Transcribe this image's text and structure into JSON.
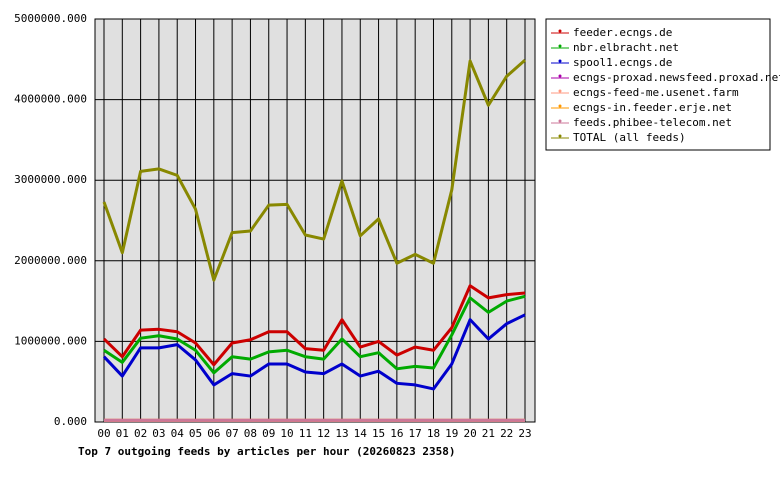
{
  "chart_data": {
    "type": "line",
    "title": "Top 7 outgoing feeds by articles per hour (20260823 2358)",
    "categories": [
      "00",
      "01",
      "02",
      "03",
      "04",
      "05",
      "06",
      "07",
      "08",
      "09",
      "10",
      "11",
      "12",
      "13",
      "14",
      "15",
      "16",
      "17",
      "18",
      "19",
      "20",
      "21",
      "22",
      "23"
    ],
    "series": [
      {
        "name": "feeder.ecngs.de",
        "color": "#cc0000",
        "values": [
          1030000,
          810000,
          1140000,
          1150000,
          1120000,
          980000,
          710000,
          980000,
          1020000,
          1120000,
          1120000,
          910000,
          890000,
          1270000,
          930000,
          1000000,
          830000,
          930000,
          890000,
          1170000,
          1690000,
          1540000,
          1580000,
          1600000
        ]
      },
      {
        "name": "nbr.elbracht.net",
        "color": "#00aa00",
        "values": [
          890000,
          740000,
          1040000,
          1070000,
          1030000,
          890000,
          610000,
          810000,
          780000,
          870000,
          890000,
          810000,
          780000,
          1030000,
          810000,
          860000,
          660000,
          690000,
          670000,
          1080000,
          1540000,
          1360000,
          1500000,
          1560000
        ]
      },
      {
        "name": "spool1.ecngs.de",
        "color": "#0000cc",
        "values": [
          810000,
          570000,
          920000,
          920000,
          960000,
          770000,
          460000,
          600000,
          570000,
          720000,
          720000,
          620000,
          600000,
          720000,
          570000,
          630000,
          480000,
          460000,
          410000,
          720000,
          1270000,
          1030000,
          1220000,
          1330000
        ]
      },
      {
        "name": "ecngs-proxad.newsfeed.proxad.net",
        "color": "#aa00aa",
        "values": [
          20000,
          20000,
          20000,
          20000,
          20000,
          20000,
          20000,
          20000,
          20000,
          20000,
          20000,
          20000,
          20000,
          20000,
          20000,
          20000,
          20000,
          20000,
          20000,
          20000,
          20000,
          20000,
          20000,
          20000
        ]
      },
      {
        "name": "ecngs-feed-me.usenet.farm",
        "color": "#ff9980",
        "values": [
          20000,
          20000,
          20000,
          20000,
          20000,
          20000,
          20000,
          20000,
          20000,
          20000,
          20000,
          20000,
          20000,
          20000,
          20000,
          20000,
          20000,
          20000,
          20000,
          20000,
          20000,
          20000,
          20000,
          20000
        ]
      },
      {
        "name": "ecngs-in.feeder.erje.net",
        "color": "#ff9900",
        "values": [
          20000,
          20000,
          20000,
          20000,
          20000,
          20000,
          20000,
          20000,
          20000,
          20000,
          20000,
          20000,
          20000,
          20000,
          20000,
          20000,
          20000,
          20000,
          20000,
          20000,
          20000,
          20000,
          20000,
          20000
        ]
      },
      {
        "name": "feeds.phibee-telecom.net",
        "color": "#cc7799",
        "values": [
          20000,
          20000,
          20000,
          20000,
          20000,
          20000,
          20000,
          20000,
          20000,
          20000,
          20000,
          20000,
          20000,
          20000,
          20000,
          20000,
          20000,
          20000,
          20000,
          20000,
          20000,
          20000,
          20000,
          20000
        ]
      },
      {
        "name": "TOTAL (all feeds)",
        "color": "#888800",
        "values": [
          2730000,
          2100000,
          3110000,
          3140000,
          3060000,
          2640000,
          1760000,
          2350000,
          2370000,
          2690000,
          2700000,
          2320000,
          2270000,
          2990000,
          2310000,
          2520000,
          1970000,
          2080000,
          1970000,
          2880000,
          4480000,
          3930000,
          4290000,
          4490000
        ]
      }
    ],
    "ylim": [
      0,
      5000000
    ],
    "yticks": [
      {
        "value": 0,
        "label": "0.000"
      },
      {
        "value": 1000000,
        "label": "1000000.000"
      },
      {
        "value": 2000000,
        "label": "2000000.000"
      },
      {
        "value": 3000000,
        "label": "3000000.000"
      },
      {
        "value": 4000000,
        "label": "4000000.000"
      },
      {
        "value": 5000000,
        "label": "5000000.000"
      }
    ],
    "grid": true
  }
}
